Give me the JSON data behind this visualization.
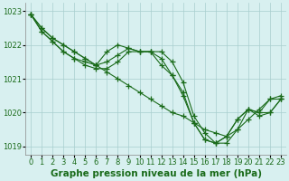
{
  "xlabel": "Graphe pression niveau de la mer (hPa)",
  "x_values": [
    0,
    1,
    2,
    3,
    4,
    5,
    6,
    7,
    8,
    9,
    10,
    11,
    12,
    13,
    14,
    15,
    16,
    17,
    18,
    19,
    20,
    21,
    22,
    23
  ],
  "lines": [
    [
      1022.9,
      1022.5,
      1022.2,
      1022.0,
      1021.8,
      1021.6,
      1021.4,
      1021.2,
      1021.0,
      1020.8,
      1020.6,
      1020.4,
      1020.2,
      1020.0,
      1019.9,
      1019.7,
      1019.5,
      1019.4,
      1019.3,
      1019.5,
      1019.8,
      1020.1,
      1020.4,
      1020.5
    ],
    [
      1022.9,
      1022.4,
      1022.1,
      1021.8,
      1021.6,
      1021.5,
      1021.4,
      1021.8,
      1022.0,
      1021.9,
      1021.8,
      1021.8,
      1021.6,
      1021.1,
      1020.6,
      1019.7,
      1019.2,
      1019.1,
      1019.3,
      1019.8,
      1020.1,
      1020.0,
      1020.4,
      1020.4
    ],
    [
      1022.9,
      1022.5,
      1022.2,
      1022.0,
      1021.8,
      1021.6,
      1021.4,
      1021.5,
      1021.7,
      1021.9,
      1021.8,
      1021.8,
      1021.8,
      1021.5,
      1020.9,
      1019.9,
      1019.4,
      1019.1,
      1019.1,
      1019.5,
      1020.1,
      1019.9,
      1020.0,
      1020.4
    ],
    [
      1022.9,
      1022.4,
      1022.1,
      1021.8,
      1021.6,
      1021.4,
      1021.3,
      1021.3,
      1021.5,
      1021.8,
      1021.8,
      1021.8,
      1021.4,
      1021.1,
      1020.5,
      1019.7,
      1019.2,
      1019.1,
      1019.3,
      1019.8,
      1020.1,
      1020.0,
      1020.0,
      1020.4
    ]
  ],
  "ylim": [
    1018.75,
    1023.25
  ],
  "yticks": [
    1019,
    1020,
    1021,
    1022,
    1023
  ],
  "xlim": [
    -0.5,
    23.5
  ],
  "xticks": [
    0,
    1,
    2,
    3,
    4,
    5,
    6,
    7,
    8,
    9,
    10,
    11,
    12,
    13,
    14,
    15,
    16,
    17,
    18,
    19,
    20,
    21,
    22,
    23
  ],
  "bg_color": "#d8f0f0",
  "grid_color": "#a8cece",
  "line_color": "#1a6b1a",
  "text_color": "#1a6b1a",
  "label_fontsize": 7.5,
  "tick_fontsize": 6.0
}
